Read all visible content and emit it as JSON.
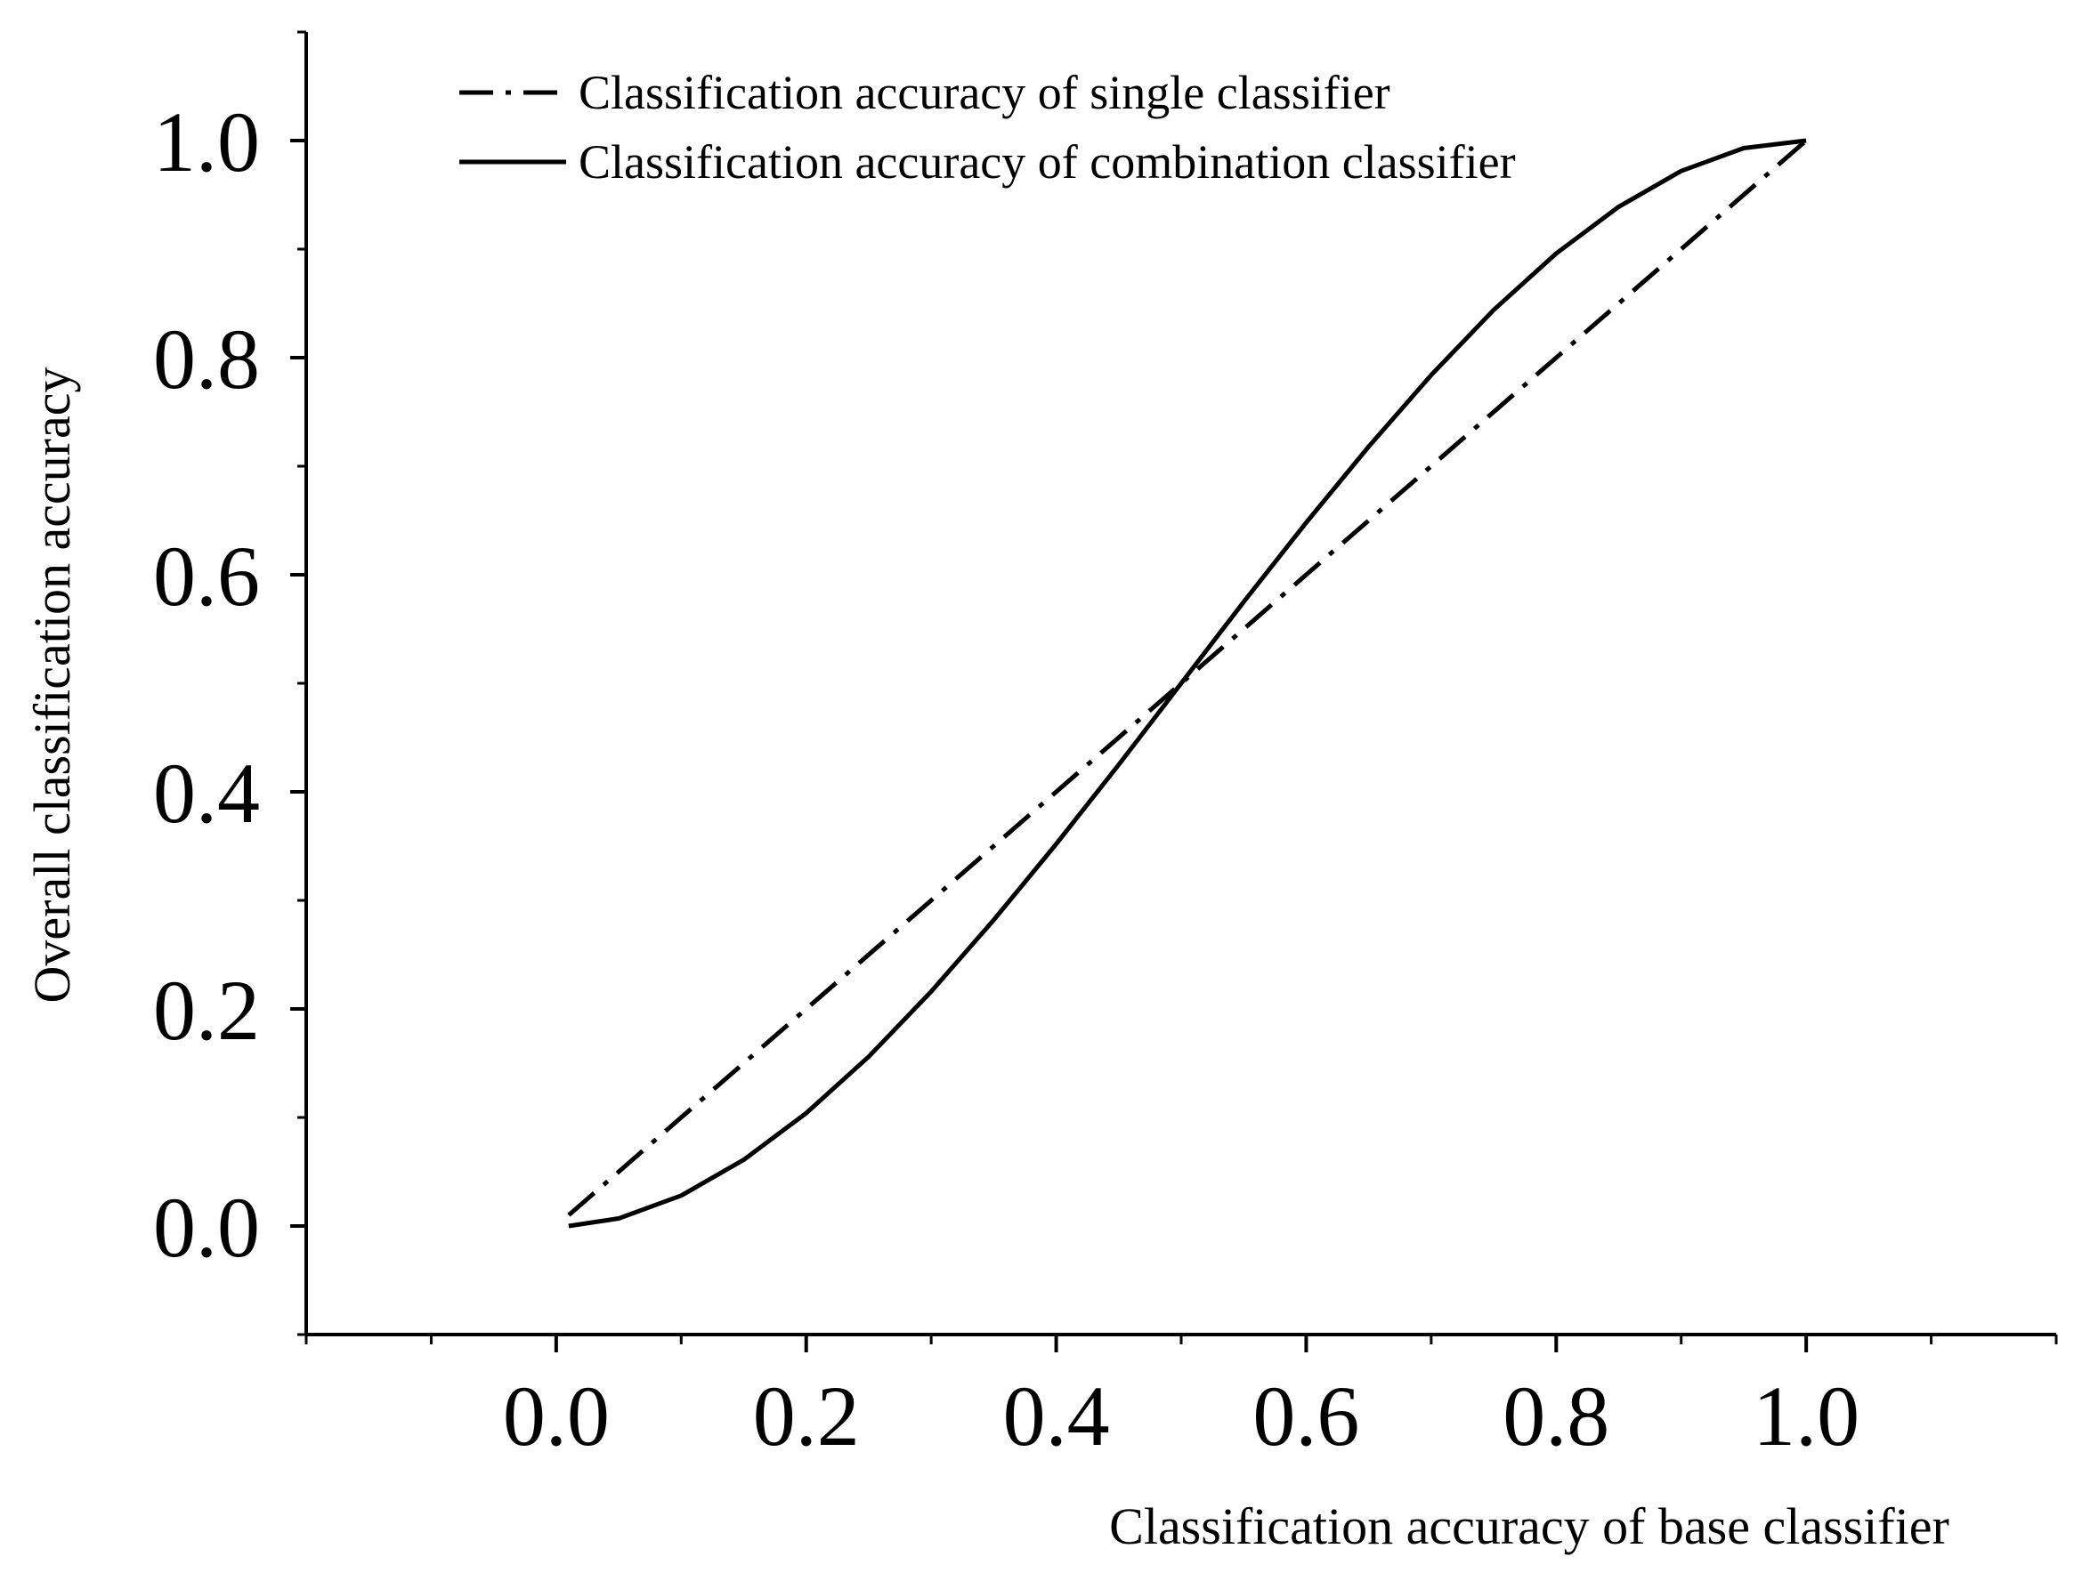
{
  "chart_data": {
    "type": "line",
    "title": "",
    "xlabel": "Classification accuracy of base classifier",
    "ylabel": "Overall classification accuracy",
    "xlim": [
      -0.2,
      1.2
    ],
    "ylim": [
      -0.1,
      1.1
    ],
    "x_ticks": [
      "0.0",
      "0.2",
      "0.4",
      "0.6",
      "0.8",
      "1.0"
    ],
    "y_ticks": [
      "0.0",
      "0.2",
      "0.4",
      "0.6",
      "0.8",
      "1.0"
    ],
    "grid": false,
    "legend_position": "top-left",
    "series": [
      {
        "name": "Classification accuracy of single classifier",
        "style": "dash-dot",
        "x": [
          0.01,
          1.0
        ],
        "y": [
          0.01,
          1.0
        ]
      },
      {
        "name": "Classification accuracy of combination classifier",
        "style": "solid",
        "x": [
          0.01,
          0.05,
          0.1,
          0.15,
          0.2,
          0.25,
          0.3,
          0.35,
          0.4,
          0.45,
          0.5,
          0.55,
          0.6,
          0.65,
          0.7,
          0.75,
          0.8,
          0.85,
          0.9,
          0.95,
          1.0
        ],
        "y": [
          0.0,
          0.007,
          0.028,
          0.061,
          0.104,
          0.156,
          0.216,
          0.282,
          0.352,
          0.425,
          0.5,
          0.575,
          0.648,
          0.718,
          0.784,
          0.844,
          0.896,
          0.939,
          0.972,
          0.993,
          1.0
        ]
      }
    ]
  }
}
